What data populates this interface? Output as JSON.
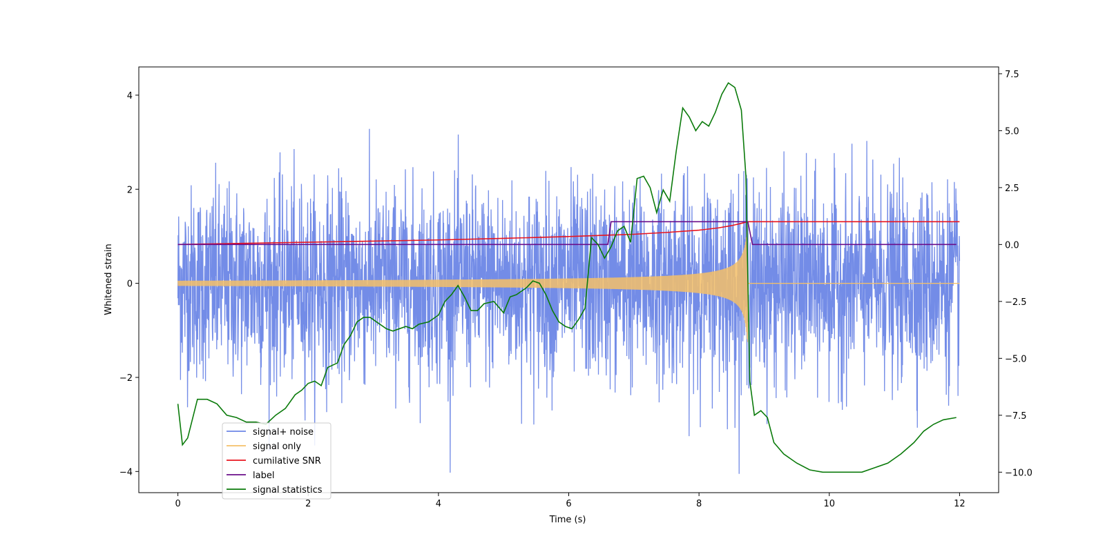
{
  "chart_data": {
    "type": "line",
    "title": "",
    "xlabel": "Time (s)",
    "ylabel": "Whitened strain",
    "xlim": [
      -0.6,
      12.6
    ],
    "ylim": [
      -4.45,
      4.6
    ],
    "y2lim": [
      -10.9,
      7.8
    ],
    "xticks": [
      0,
      2,
      4,
      6,
      8,
      10,
      12
    ],
    "xtick_labels": [
      "0",
      "2",
      "4",
      "6",
      "8",
      "10",
      "12"
    ],
    "yticks": [
      -4,
      -2,
      0,
      2,
      4
    ],
    "ytick_labels": [
      "−4",
      "−2",
      "0",
      "2",
      "4"
    ],
    "y2ticks": [
      -10,
      -7.5,
      -5,
      -2.5,
      0,
      2.5,
      5,
      7.5
    ],
    "y2tick_labels": [
      "−10.0",
      "−7.5",
      "−5.0",
      "−2.5",
      "0.0",
      "2.5",
      "5.0",
      "7.5"
    ],
    "colors": {
      "noise": "#6b86e6",
      "signal": "#f5c068",
      "snr": "#e8141e",
      "label": "#6a0d8a",
      "stat": "#0a7a0a"
    },
    "series": [
      {
        "name": "signal+ noise",
        "axis": "left",
        "description": "Gaussian whitened noise, std approx 1.0, peaks approx +/-4, spanning t = 0 to 12 s"
      },
      {
        "name": "signal only",
        "axis": "left",
        "description": "chirp with amplitude growing from approx 0.05 at t=0 to approx 1.25 at merger t=8.75 s, zero after",
        "merger_time": 8.75,
        "peak_amplitude": 1.25
      },
      {
        "name": "cumilative SNR",
        "axis": "right",
        "x": [
          0,
          1,
          2,
          3,
          4,
          5,
          6,
          7,
          7.5,
          8,
          8.3,
          8.5,
          8.65,
          8.75,
          12
        ],
        "y": [
          0.0,
          0.05,
          0.1,
          0.15,
          0.2,
          0.27,
          0.35,
          0.45,
          0.53,
          0.63,
          0.73,
          0.83,
          0.93,
          1.0,
          1.0
        ]
      },
      {
        "name": "label",
        "axis": "right",
        "x": [
          0,
          6.6,
          6.65,
          8.75,
          8.82,
          11.95
        ],
        "y": [
          0,
          0,
          1,
          1,
          0,
          0
        ]
      },
      {
        "name": "signal statistics",
        "axis": "right",
        "x": [
          0,
          0.07,
          0.15,
          0.3,
          0.45,
          0.6,
          0.75,
          0.9,
          1.05,
          1.2,
          1.35,
          1.5,
          1.65,
          1.8,
          1.9,
          2.0,
          2.1,
          2.2,
          2.3,
          2.45,
          2.55,
          2.65,
          2.75,
          2.85,
          2.95,
          3.05,
          3.2,
          3.3,
          3.4,
          3.5,
          3.6,
          3.7,
          3.85,
          4.0,
          4.1,
          4.2,
          4.3,
          4.4,
          4.5,
          4.6,
          4.7,
          4.85,
          5.0,
          5.1,
          5.2,
          5.35,
          5.45,
          5.55,
          5.65,
          5.75,
          5.85,
          5.95,
          6.05,
          6.15,
          6.25,
          6.35,
          6.45,
          6.55,
          6.65,
          6.75,
          6.85,
          6.95,
          7.05,
          7.15,
          7.25,
          7.35,
          7.45,
          7.55,
          7.65,
          7.75,
          7.85,
          7.95,
          8.05,
          8.15,
          8.25,
          8.35,
          8.45,
          8.55,
          8.65,
          8.72,
          8.78,
          8.85,
          8.95,
          9.05,
          9.15,
          9.3,
          9.5,
          9.7,
          9.9,
          10.1,
          10.3,
          10.5,
          10.7,
          10.9,
          11.1,
          11.3,
          11.45,
          11.6,
          11.75,
          11.95
        ],
        "y": [
          -7.0,
          -8.8,
          -8.5,
          -6.8,
          -6.8,
          -7.0,
          -7.5,
          -7.6,
          -7.8,
          -7.8,
          -7.9,
          -7.5,
          -7.2,
          -6.6,
          -6.4,
          -6.1,
          -6.0,
          -6.2,
          -5.4,
          -5.2,
          -4.4,
          -4.0,
          -3.4,
          -3.2,
          -3.2,
          -3.4,
          -3.7,
          -3.8,
          -3.7,
          -3.6,
          -3.7,
          -3.5,
          -3.4,
          -3.1,
          -2.5,
          -2.2,
          -1.8,
          -2.3,
          -2.9,
          -2.9,
          -2.6,
          -2.5,
          -3.0,
          -2.3,
          -2.2,
          -1.9,
          -1.6,
          -1.7,
          -2.2,
          -2.9,
          -3.4,
          -3.6,
          -3.7,
          -3.3,
          -2.8,
          0.3,
          0.0,
          -0.6,
          -0.1,
          0.6,
          0.8,
          0.1,
          2.9,
          3.0,
          2.5,
          1.4,
          2.4,
          1.9,
          4.1,
          6.0,
          5.6,
          5.0,
          5.4,
          5.2,
          5.8,
          6.6,
          7.1,
          6.9,
          5.9,
          3.0,
          -6.0,
          -7.5,
          -7.3,
          -7.6,
          -8.7,
          -9.2,
          -9.6,
          -9.9,
          -10.0,
          -10.0,
          -10.0,
          -10.0,
          -9.8,
          -9.6,
          -9.2,
          -8.7,
          -8.2,
          -7.9,
          -7.7,
          -7.6
        ]
      }
    ],
    "legend": {
      "placement": "lower-left",
      "entries": [
        "signal+ noise",
        "signal only",
        "cumilative SNR",
        "label",
        "signal statistics"
      ]
    }
  }
}
